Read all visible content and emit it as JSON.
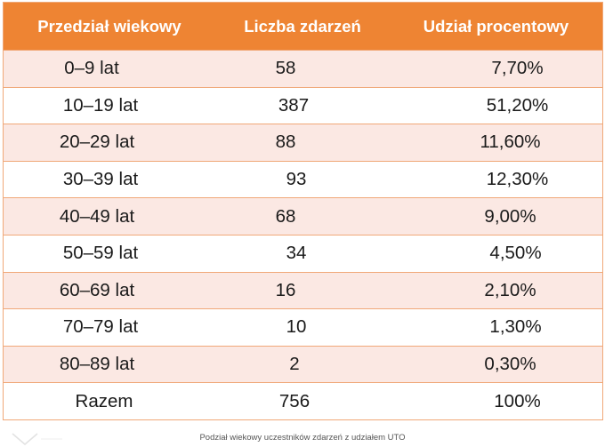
{
  "table": {
    "headers": [
      "Przedział wiekowy",
      "Liczba zdarzeń",
      "Udział procentowy"
    ],
    "rows": [
      [
        "0–9 lat",
        "58",
        "7,70%"
      ],
      [
        "10–19 lat",
        "387",
        "51,20%"
      ],
      [
        "20–29 lat",
        "88",
        "11,60%"
      ],
      [
        "30–39 lat",
        "93",
        "12,30%"
      ],
      [
        "40–49 lat",
        "68",
        "9,00%"
      ],
      [
        "50–59 lat",
        "34",
        "4,50%"
      ],
      [
        "60–69 lat",
        "16",
        "2,10%"
      ],
      [
        "70–79 lat",
        "10",
        "1,30%"
      ],
      [
        "80–89 lat",
        "2",
        "0,30%"
      ],
      [
        "Razem",
        "756",
        "100%"
      ]
    ]
  },
  "caption": "Podział wiekowy uczestników zdarzeń z udziałem UTO",
  "colors": {
    "header_bg": "#ee8433",
    "stripe_bg": "#fbe8e3",
    "border": "#f0a878"
  }
}
